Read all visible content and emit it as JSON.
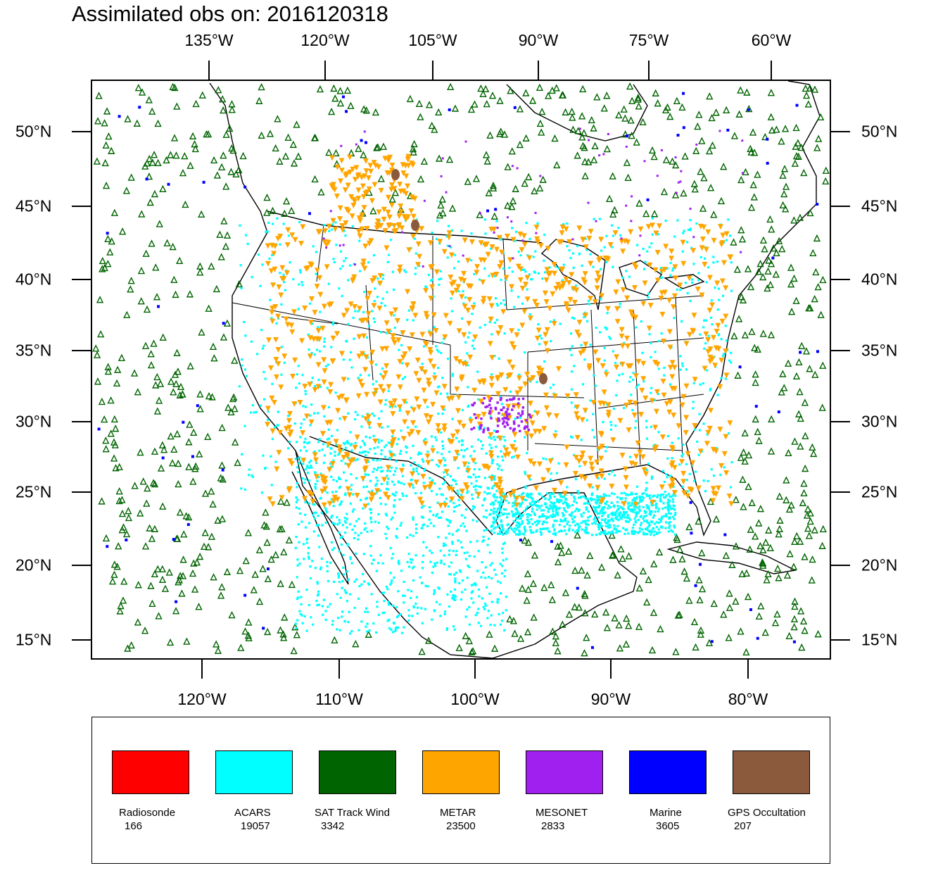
{
  "title": "Assimilated obs on: 2016120318",
  "axes": {
    "top_lon": [
      "135°W",
      "120°W",
      "105°W",
      "90°W",
      "75°W",
      "60°W"
    ],
    "bottom_lon": [
      "120°W",
      "110°W",
      "100°W",
      "90°W",
      "80°W"
    ],
    "lat": [
      "50°N",
      "45°N",
      "40°N",
      "35°N",
      "30°N",
      "25°N",
      "20°N",
      "15°N"
    ]
  },
  "legend": [
    {
      "name": "Radiosonde",
      "count": "166",
      "color": "#ff0000"
    },
    {
      "name": "ACARS",
      "count": "19057",
      "color": "#00ffff"
    },
    {
      "name": "SAT Track Wind",
      "count": "3342",
      "color": "#006400"
    },
    {
      "name": "METAR",
      "count": "23500",
      "color": "#ffa500"
    },
    {
      "name": "MESONET",
      "count": "2833",
      "color": "#a020f0"
    },
    {
      "name": "Marine",
      "count": "3605",
      "color": "#0000ff"
    },
    {
      "name": "GPS Occultation",
      "count": "207",
      "color": "#8b5a3c"
    }
  ]
}
